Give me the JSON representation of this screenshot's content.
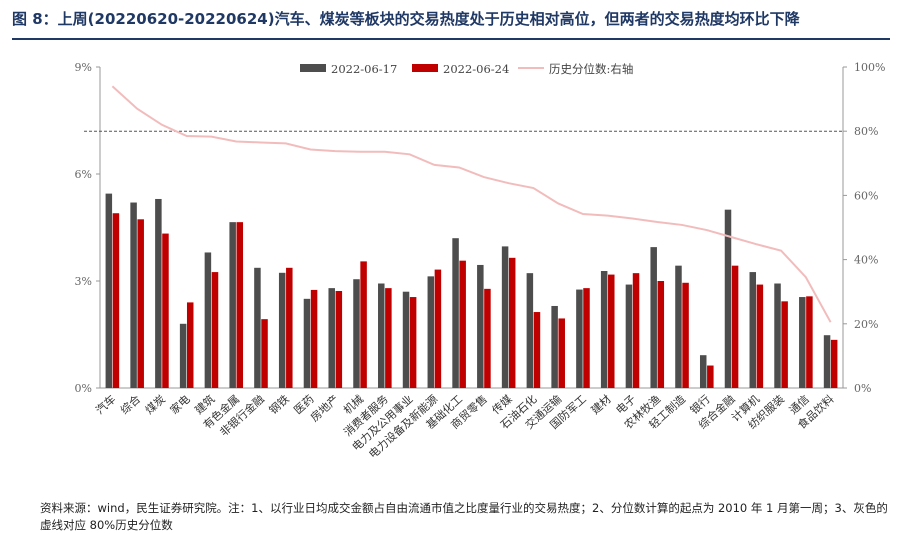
{
  "title": "图 8：上周(20220620-20220624)汽车、煤炭等板块的交易热度处于历史相对高位，但两者的交易热度均环比下降",
  "footer": "资料来源：wind，民生证券研究院。注：1、以行业日均成交金额占自由流通市值之比度量行业的交易热度；2、分位数计算的起点为 2010 年 1 月第一周；3、灰色的虚线对应 80%历史分位数",
  "chart_data": {
    "type": "bar",
    "categories": [
      "汽车",
      "综合",
      "煤炭",
      "家电",
      "建筑",
      "有色金属",
      "非银行金融",
      "钢铁",
      "医药",
      "房地产",
      "机械",
      "消费者服务",
      "电力及公用事业",
      "电力设备及新能源",
      "基础化工",
      "商贸零售",
      "传媒",
      "石油石化",
      "交通运输",
      "国防军工",
      "建材",
      "电子",
      "农林牧渔",
      "轻工制造",
      "银行",
      "综合金融",
      "计算机",
      "纺织服装",
      "通信",
      "食品饮料"
    ],
    "series": [
      {
        "name": "2022-06-17",
        "color": "#4d4d4d",
        "axis": "left",
        "values": [
          5.45,
          5.2,
          5.3,
          1.8,
          3.8,
          4.65,
          3.37,
          3.23,
          2.5,
          2.8,
          3.05,
          2.93,
          2.7,
          3.13,
          4.2,
          3.45,
          3.97,
          3.22,
          2.3,
          2.76,
          3.28,
          2.9,
          3.95,
          3.43,
          0.92,
          5.0,
          3.25,
          2.93,
          2.55,
          1.48
        ]
      },
      {
        "name": "2022-06-24",
        "color": "#c00000",
        "axis": "left",
        "values": [
          4.9,
          4.73,
          4.33,
          2.4,
          3.25,
          4.65,
          1.93,
          3.37,
          2.75,
          2.72,
          3.55,
          2.8,
          2.55,
          3.32,
          3.57,
          2.78,
          3.65,
          2.13,
          1.95,
          2.8,
          3.18,
          3.22,
          3.0,
          2.95,
          0.63,
          3.43,
          2.9,
          2.43,
          2.57,
          1.35
        ]
      },
      {
        "name": "历史分位数:右轴",
        "color": "#f2bcbc",
        "axis": "right",
        "type": "line",
        "values": [
          94,
          87,
          82,
          78.5,
          78.3,
          76.8,
          76.5,
          76.2,
          74.3,
          73.8,
          73.6,
          73.6,
          72.8,
          69.5,
          68.7,
          65.7,
          63.8,
          62.3,
          57.5,
          54.2,
          53.7,
          52.8,
          51.7,
          50.8,
          49.2,
          47.0,
          44.8,
          42.8,
          34.5,
          20.5
        ]
      }
    ],
    "yleft": {
      "min": 0,
      "max": 9,
      "ticks": [
        "0%",
        "3%",
        "6%",
        "9%"
      ]
    },
    "yright": {
      "min": 0,
      "max": 100,
      "ticks": [
        "0%",
        "20%",
        "40%",
        "60%",
        "80%",
        "100%"
      ]
    },
    "reference_line": {
      "axis": "right",
      "value": 80,
      "style": "dashed",
      "color": "#555555"
    },
    "legend_position": "top-center",
    "grid": false
  }
}
